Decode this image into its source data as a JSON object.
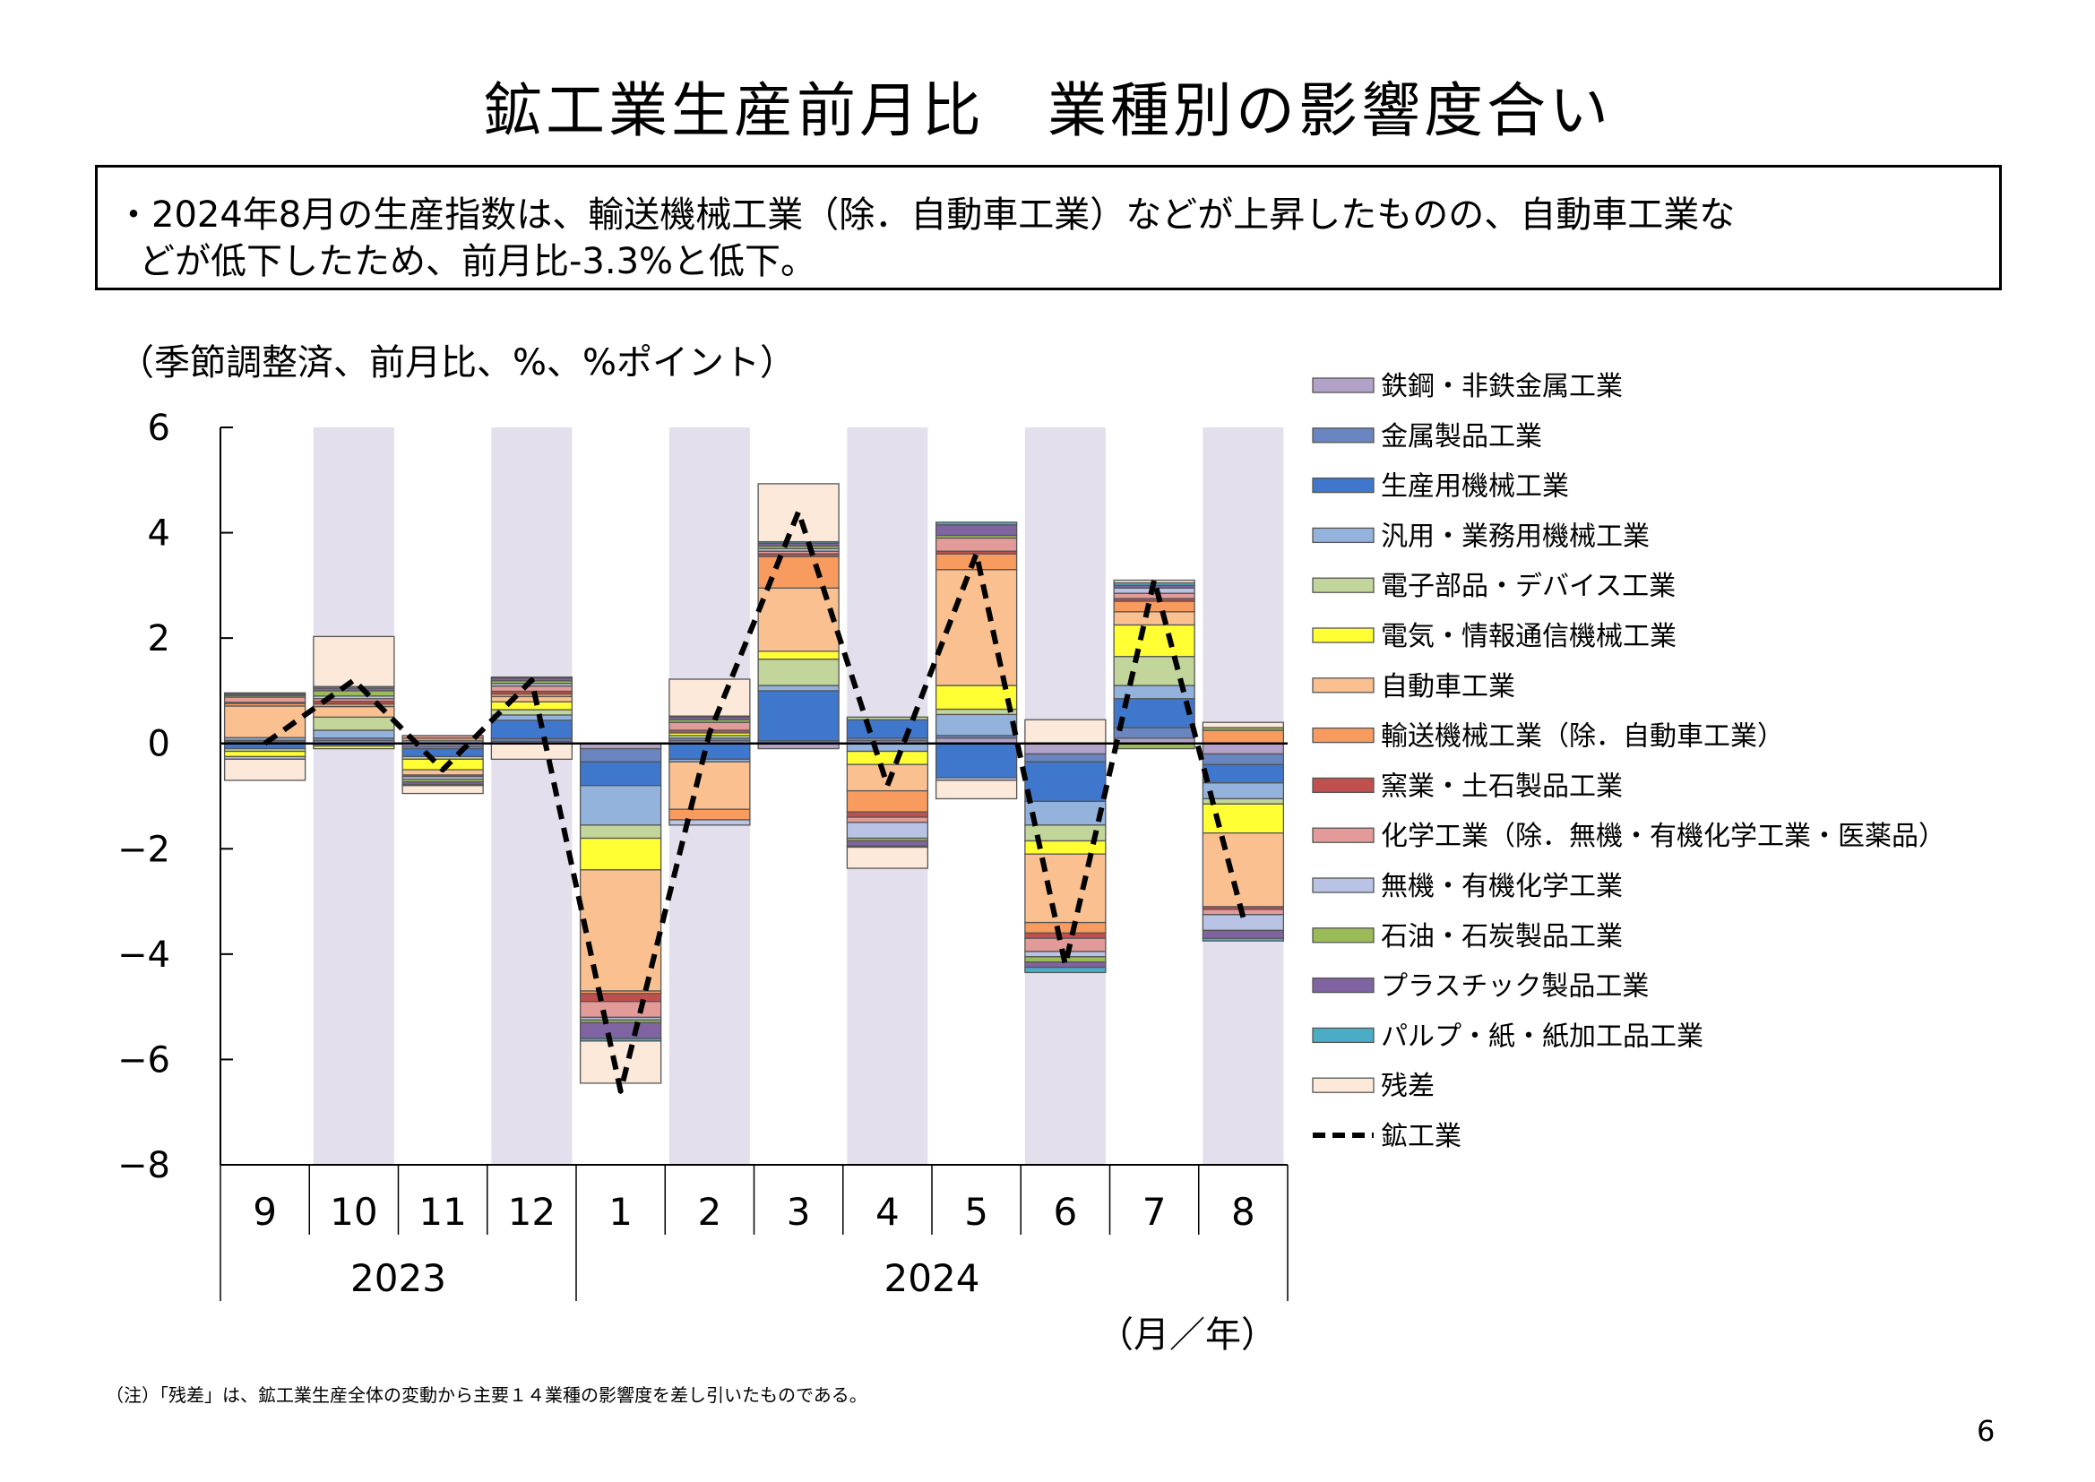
{
  "title": "鉱工業生産前月比　業種別の影響度合い",
  "summary": {
    "line1": "・2024年8月の生産指数は、輸送機械工業（除．自動車工業）などが上昇したものの、自動車工業な",
    "line2": "どが低下したため、前月比-3.3%と低下。"
  },
  "subtitle": "（季節調整済、前月比、%、%ポイント）",
  "note": "（注）「残差」は、鉱工業生産全体の変動から主要１４業種の影響度を差し引いたものである。",
  "page_number": "6",
  "chart_data": {
    "type": "bar",
    "stacked": true,
    "categories": [
      "9",
      "10",
      "11",
      "12",
      "1",
      "2",
      "3",
      "4",
      "5",
      "6",
      "7",
      "8"
    ],
    "year_labels": [
      {
        "label": "2023",
        "from": 0,
        "to": 3
      },
      {
        "label": "2024",
        "from": 4,
        "to": 11
      }
    ],
    "x_unit_label": "（月／年）",
    "ylim": [
      -8,
      6
    ],
    "yticks": [
      "6",
      "4",
      "2",
      "0",
      "−2",
      "−4",
      "−6",
      "−8"
    ],
    "ytick_values": [
      6,
      4,
      2,
      0,
      -2,
      -4,
      -6,
      -8
    ],
    "shaded_category_indices": [
      1,
      3,
      5,
      7,
      9,
      11
    ],
    "shade_color": "#e3dfec",
    "series": [
      {
        "name": "鉄鋼・非鉄金属工業",
        "color": "#b3a2c8",
        "values": [
          0.03,
          0.05,
          -0.05,
          0.04,
          -0.1,
          0.05,
          -0.1,
          0.05,
          0.1,
          -0.2,
          0.1,
          -0.2
        ]
      },
      {
        "name": "金属製品工業",
        "color": "#6a86c0",
        "values": [
          0.03,
          0.05,
          -0.05,
          0.05,
          -0.25,
          0.05,
          0.05,
          0.05,
          0.05,
          -0.15,
          0.2,
          -0.2
        ]
      },
      {
        "name": "生産用機械工業",
        "color": "#3f77cc",
        "values": [
          -0.1,
          -0.05,
          -0.15,
          0.35,
          -0.45,
          -0.3,
          0.95,
          0.35,
          -0.65,
          -0.75,
          0.55,
          -0.35
        ]
      },
      {
        "name": "汎用・業務用機械工業",
        "color": "#93b3dc",
        "values": [
          0.05,
          0.15,
          0.05,
          0.1,
          -0.75,
          -0.05,
          0.1,
          -0.15,
          0.4,
          -0.45,
          0.25,
          -0.3
        ]
      },
      {
        "name": "電子部品・デバイス工業",
        "color": "#c2d69b",
        "values": [
          -0.05,
          0.25,
          -0.05,
          0.1,
          -0.25,
          0.05,
          0.5,
          0.05,
          0.1,
          -0.3,
          0.55,
          -0.1
        ]
      },
      {
        "name": "電気・情報通信機械工業",
        "color": "#ffff33",
        "values": [
          -0.1,
          -0.05,
          -0.2,
          0.15,
          -0.6,
          0.05,
          0.15,
          -0.25,
          0.45,
          -0.25,
          0.6,
          -0.55
        ]
      },
      {
        "name": "自動車工業",
        "color": "#fac090",
        "values": [
          0.6,
          0.2,
          -0.1,
          0.1,
          -2.3,
          -0.9,
          1.2,
          -0.5,
          2.2,
          -1.3,
          0.25,
          -1.4
        ]
      },
      {
        "name": "輸送機械工業（除．自動車工業）",
        "color": "#f79b5f",
        "values": [
          0.05,
          0.05,
          0.05,
          0.05,
          -0.05,
          -0.2,
          0.6,
          -0.4,
          0.3,
          -0.2,
          0.2,
          0.25
        ]
      },
      {
        "name": "窯業・土石製品工業",
        "color": "#c0504d",
        "values": [
          0.02,
          0.05,
          -0.03,
          0.05,
          -0.15,
          0.05,
          0.05,
          -0.1,
          0.05,
          -0.1,
          0.05,
          -0.05
        ]
      },
      {
        "name": "化学工業（除．無機・有機化学工業・医薬品）",
        "color": "#e29b99",
        "values": [
          0.1,
          0.05,
          0.05,
          0.1,
          -0.3,
          0.15,
          0.05,
          -0.1,
          0.25,
          -0.25,
          0.1,
          -0.1
        ]
      },
      {
        "name": "無機・有機化学工業",
        "color": "#b9c3e5",
        "values": [
          -0.05,
          0.05,
          -0.05,
          0.05,
          -0.05,
          -0.1,
          0.05,
          -0.3,
          -0.05,
          -0.1,
          0.1,
          -0.3
        ]
      },
      {
        "name": "石油・石炭製品工業",
        "color": "#9bbb59",
        "values": [
          0.03,
          0.1,
          -0.05,
          0.05,
          -0.05,
          0.05,
          0.05,
          -0.05,
          0.05,
          -0.1,
          -0.1,
          0.05
        ]
      },
      {
        "name": "プラスチック製品工業",
        "color": "#8064a2",
        "values": [
          0.03,
          0.05,
          -0.05,
          0.05,
          -0.3,
          0.05,
          0.05,
          -0.1,
          0.2,
          -0.1,
          0.05,
          -0.15
        ]
      },
      {
        "name": "パルプ・紙・紙加工品工業",
        "color": "#4bacc6",
        "values": [
          0.02,
          0.03,
          -0.02,
          0.02,
          -0.05,
          0.02,
          0.03,
          -0.02,
          0.05,
          -0.1,
          0.05,
          -0.05
        ]
      },
      {
        "name": "残差",
        "color": "#fde9d9",
        "values": [
          -0.4,
          0.95,
          -0.15,
          -0.3,
          -0.8,
          0.7,
          1.1,
          -0.4,
          -0.35,
          0.45,
          0.05,
          0.1
        ]
      }
    ],
    "total_series": {
      "name": "鉱工業",
      "color": "#000000",
      "style": "dashed",
      "values": [
        0.0,
        1.2,
        -0.5,
        1.2,
        -6.6,
        0.2,
        4.4,
        -0.8,
        3.6,
        -4.2,
        3.1,
        -3.3
      ]
    }
  }
}
